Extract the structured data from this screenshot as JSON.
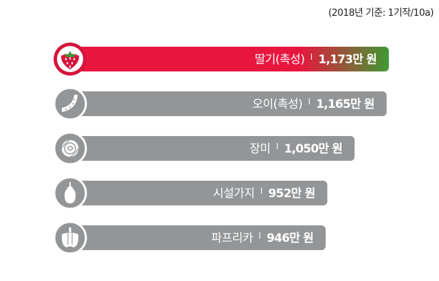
{
  "note": "(2018년 기준: 1기작/10a)",
  "colors": {
    "highlight_start": "#e8163f",
    "highlight_end": "#3f9a33",
    "bar": "#939597",
    "icon_bg": "#939597",
    "highlight_ring": "#d4163c"
  },
  "chart_data": {
    "type": "bar",
    "orientation": "horizontal",
    "unit": "만 원",
    "categories": [
      "딸기(촉성)",
      "오이(촉성)",
      "장미",
      "시설가지",
      "파프리카"
    ],
    "values": [
      1173,
      1165,
      1050,
      952,
      946
    ],
    "value_labels": [
      "1,173만 원",
      "1,165만 원",
      "1,050만 원",
      "952만 원",
      "946만 원"
    ],
    "icons": [
      "strawberry-icon",
      "cucumber-icon",
      "rose-icon",
      "eggplant-icon",
      "paprika-icon"
    ],
    "highlighted_index": 0
  }
}
